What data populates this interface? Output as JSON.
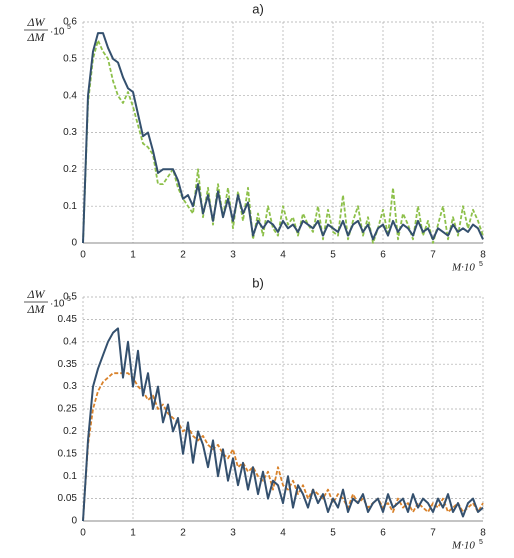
{
  "chart_data": [
    {
      "type": "line",
      "title": "a)",
      "y_label": {
        "numerator": "ΔW",
        "denominator": "ΔM",
        "factor": "·10",
        "exponent": "5"
      },
      "x_label": {
        "text": "M·10",
        "exponent": "5"
      },
      "x": [
        0,
        0.1,
        0.2,
        0.3,
        0.4,
        0.5,
        0.6,
        0.7,
        0.8,
        0.9,
        1,
        1.1,
        1.2,
        1.3,
        1.4,
        1.5,
        1.6,
        1.7,
        1.8,
        1.9,
        2,
        2.1,
        2.2,
        2.3,
        2.4,
        2.5,
        2.6,
        2.7,
        2.8,
        2.9,
        3,
        3.1,
        3.2,
        3.3,
        3.4,
        3.5,
        3.6,
        3.7,
        3.8,
        3.9,
        4,
        4.1,
        4.2,
        4.3,
        4.4,
        4.5,
        4.6,
        4.7,
        4.8,
        4.9,
        5,
        5.1,
        5.2,
        5.3,
        5.4,
        5.5,
        5.6,
        5.7,
        5.8,
        5.9,
        6,
        6.1,
        6.2,
        6.3,
        6.4,
        6.5,
        6.6,
        6.7,
        6.8,
        6.9,
        7,
        7.1,
        7.2,
        7.3,
        7.4,
        7.5,
        7.6,
        7.7,
        7.8,
        7.9,
        8
      ],
      "series": [
        {
          "color": "#34506e",
          "dashed": false,
          "values": [
            0,
            0.4,
            0.52,
            0.57,
            0.57,
            0.53,
            0.5,
            0.49,
            0.45,
            0.42,
            0.41,
            0.35,
            0.29,
            0.3,
            0.25,
            0.19,
            0.2,
            0.2,
            0.2,
            0.17,
            0.12,
            0.13,
            0.1,
            0.16,
            0.08,
            0.13,
            0.06,
            0.14,
            0.07,
            0.12,
            0.06,
            0.13,
            0.08,
            0.11,
            0.02,
            0.06,
            0.04,
            0.06,
            0.05,
            0.03,
            0.06,
            0.04,
            0.05,
            0.03,
            0.06,
            0.05,
            0.04,
            0.06,
            0.02,
            0.05,
            0.04,
            0.03,
            0.06,
            0.02,
            0.05,
            0.06,
            0.03,
            0.05,
            0.01,
            0.04,
            0.05,
            0.02,
            0.06,
            0.03,
            0.05,
            0.04,
            0.02,
            0.06,
            0.03,
            0.04,
            0.01,
            0.04,
            0.03,
            0.02,
            0.05,
            0.03,
            0.04,
            0.03,
            0.05,
            0.04,
            0.01
          ]
        },
        {
          "color": "#8dc04a",
          "dashed": true,
          "values": [
            0,
            0.38,
            0.5,
            0.55,
            0.52,
            0.5,
            0.44,
            0.4,
            0.38,
            0.41,
            0.37,
            0.32,
            0.27,
            0.26,
            0.24,
            0.16,
            0.16,
            0.18,
            0.2,
            0.15,
            0.12,
            0.1,
            0.08,
            0.2,
            0.07,
            0.15,
            0.05,
            0.16,
            0.07,
            0.15,
            0.04,
            0.14,
            0.06,
            0.15,
            0.01,
            0.08,
            0.02,
            0.1,
            0.04,
            0.02,
            0.1,
            0.05,
            0.07,
            0.02,
            0.08,
            0.05,
            0.03,
            0.1,
            0.01,
            0.09,
            0.03,
            0.02,
            0.13,
            0.01,
            0.06,
            0.1,
            0.02,
            0.07,
            0,
            0.04,
            0.09,
            0.02,
            0.15,
            0.01,
            0.08,
            0.05,
            0.01,
            0.1,
            0.02,
            0.06,
            0,
            0.05,
            0.1,
            0.01,
            0.07,
            0.02,
            0.1,
            0.04,
            0.09,
            0.06,
            0.02
          ]
        }
      ],
      "xlim": [
        0,
        8
      ],
      "xticks": [
        0,
        1,
        2,
        3,
        4,
        5,
        6,
        7,
        8
      ],
      "ylim": [
        0,
        0.6
      ],
      "yticks": [
        0,
        0.1,
        0.2,
        0.3,
        0.4,
        0.5,
        0.6
      ],
      "grid": true
    },
    {
      "type": "line",
      "title": "b)",
      "y_label": {
        "numerator": "ΔW",
        "denominator": "ΔM",
        "factor": "·10",
        "exponent": "5"
      },
      "x_label": {
        "text": "M·10",
        "exponent": "5"
      },
      "x": [
        0,
        0.1,
        0.2,
        0.3,
        0.4,
        0.5,
        0.6,
        0.7,
        0.8,
        0.9,
        1,
        1.1,
        1.2,
        1.3,
        1.4,
        1.5,
        1.6,
        1.7,
        1.8,
        1.9,
        2,
        2.1,
        2.2,
        2.3,
        2.4,
        2.5,
        2.6,
        2.7,
        2.8,
        2.9,
        3,
        3.1,
        3.2,
        3.3,
        3.4,
        3.5,
        3.6,
        3.7,
        3.8,
        3.9,
        4,
        4.1,
        4.2,
        4.3,
        4.4,
        4.5,
        4.6,
        4.7,
        4.8,
        4.9,
        5,
        5.1,
        5.2,
        5.3,
        5.4,
        5.5,
        5.6,
        5.7,
        5.8,
        5.9,
        6,
        6.1,
        6.2,
        6.3,
        6.4,
        6.5,
        6.6,
        6.7,
        6.8,
        6.9,
        7,
        7.1,
        7.2,
        7.3,
        7.4,
        7.5,
        7.6,
        7.7,
        7.8,
        7.9,
        8
      ],
      "series": [
        {
          "color": "#34506e",
          "dashed": false,
          "values": [
            0,
            0.18,
            0.3,
            0.34,
            0.37,
            0.4,
            0.42,
            0.43,
            0.32,
            0.4,
            0.3,
            0.38,
            0.28,
            0.33,
            0.25,
            0.3,
            0.22,
            0.26,
            0.2,
            0.23,
            0.15,
            0.22,
            0.13,
            0.2,
            0.17,
            0.12,
            0.18,
            0.1,
            0.16,
            0.09,
            0.14,
            0.08,
            0.13,
            0.07,
            0.12,
            0.06,
            0.11,
            0.05,
            0.09,
            0.08,
            0.04,
            0.1,
            0.03,
            0.08,
            0.06,
            0.03,
            0.07,
            0.04,
            0.06,
            0.02,
            0.05,
            0.03,
            0.07,
            0.02,
            0.05,
            0.04,
            0.06,
            0.02,
            0.04,
            0.05,
            0.02,
            0.06,
            0.03,
            0.04,
            0.05,
            0.02,
            0.06,
            0.03,
            0.05,
            0.04,
            0.02,
            0.05,
            0.03,
            0.06,
            0.02,
            0.04,
            0.01,
            0.04,
            0.05,
            0.02,
            0.03
          ]
        },
        {
          "color": "#d9822b",
          "dashed": true,
          "values": [
            0,
            0.17,
            0.25,
            0.29,
            0.31,
            0.32,
            0.33,
            0.33,
            0.33,
            0.33,
            0.32,
            0.3,
            0.29,
            0.27,
            0.28,
            0.25,
            0.26,
            0.24,
            0.23,
            0.22,
            0.2,
            0.21,
            0.19,
            0.18,
            0.19,
            0.17,
            0.16,
            0.17,
            0.15,
            0.14,
            0.16,
            0.12,
            0.13,
            0.11,
            0.12,
            0.1,
            0.09,
            0.11,
            0.07,
            0.12,
            0.08,
            0.07,
            0.09,
            0.06,
            0.08,
            0.05,
            0.07,
            0.06,
            0.05,
            0.07,
            0.04,
            0.06,
            0.05,
            0.03,
            0.06,
            0.04,
            0.05,
            0.03,
            0.04,
            0.05,
            0.03,
            0.04,
            0.02,
            0.05,
            0.03,
            0.04,
            0.02,
            0.04,
            0.03,
            0.02,
            0.04,
            0.03,
            0.05,
            0.02,
            0.03,
            0.04,
            0.02,
            0.03,
            0.04,
            0.02,
            0.04
          ]
        }
      ],
      "xlim": [
        0,
        8
      ],
      "xticks": [
        0,
        1,
        2,
        3,
        4,
        5,
        6,
        7,
        8
      ],
      "ylim": [
        0,
        0.5
      ],
      "yticks": [
        0,
        0.05,
        0.1,
        0.15,
        0.2,
        0.25,
        0.3,
        0.35,
        0.4,
        0.45,
        0.5
      ],
      "grid": true
    }
  ]
}
